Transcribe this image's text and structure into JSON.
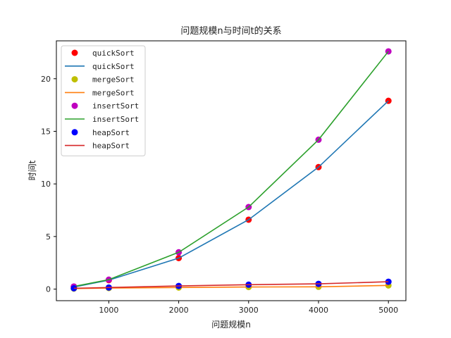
{
  "chart_data": {
    "type": "line",
    "title": "问题规模n与时间t的关系",
    "xlabel": "问题规模n",
    "ylabel": "时间t",
    "x": [
      500,
      1000,
      2000,
      3000,
      4000,
      5000
    ],
    "xlim": [
      250,
      5250
    ],
    "ylim": [
      -1.1,
      23.6
    ],
    "xticks": [
      1000,
      2000,
      3000,
      4000,
      5000
    ],
    "yticks": [
      0,
      5,
      10,
      15,
      20
    ],
    "grid": false,
    "legend_position": "top-left",
    "series": [
      {
        "name": "quickSort",
        "marker_color": "#ff0000",
        "line_color": "#1f77b4",
        "values": [
          0.2,
          0.85,
          2.95,
          6.6,
          11.6,
          17.9
        ]
      },
      {
        "name": "mergeSort",
        "marker_color": "#bfbf00",
        "line_color": "#ff7f0e",
        "values": [
          0.05,
          0.1,
          0.15,
          0.2,
          0.22,
          0.35
        ]
      },
      {
        "name": "insertSort",
        "marker_color": "#bf00bf",
        "line_color": "#2ca02c",
        "values": [
          0.25,
          0.9,
          3.5,
          7.8,
          14.2,
          22.6
        ]
      },
      {
        "name": "heapSort",
        "marker_color": "#0000ff",
        "line_color": "#d62728",
        "values": [
          0.08,
          0.15,
          0.3,
          0.42,
          0.5,
          0.7
        ]
      }
    ]
  }
}
